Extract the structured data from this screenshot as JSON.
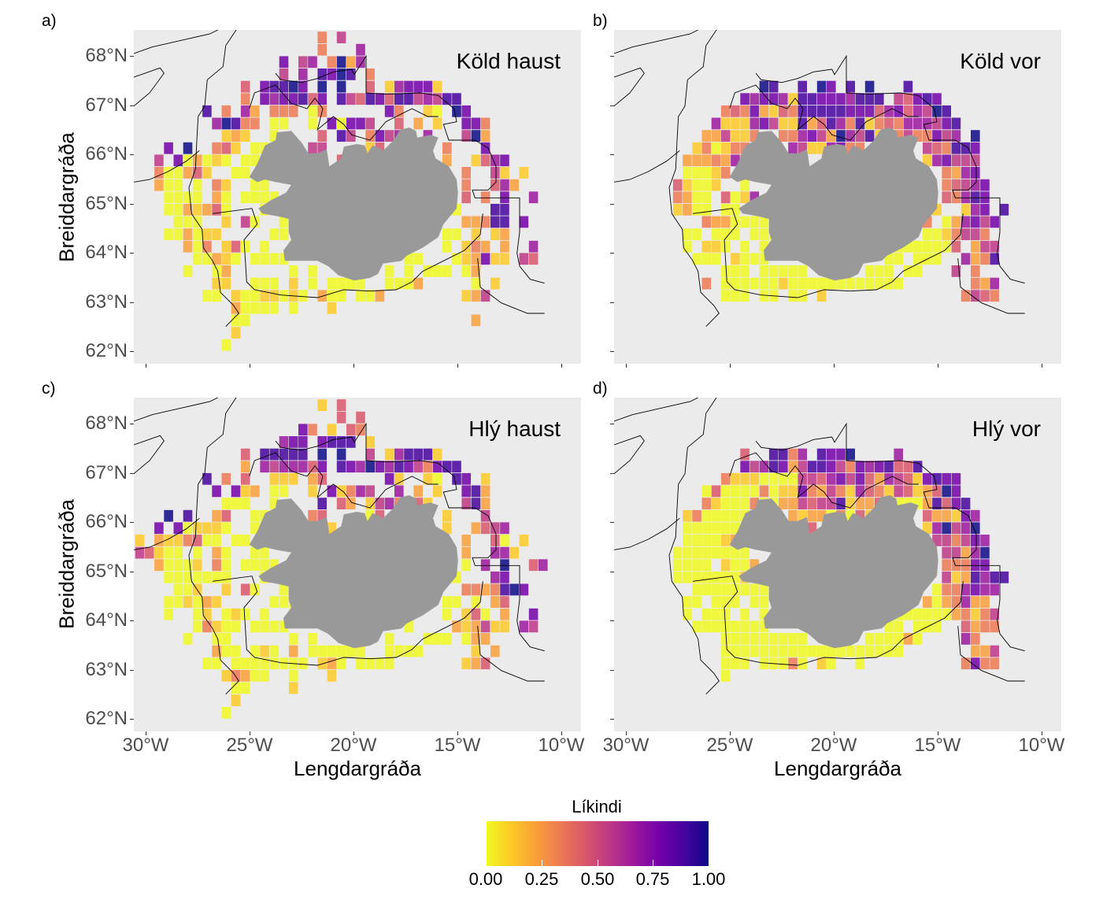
{
  "figure": {
    "panel_labels": [
      "a)",
      "b)",
      "c)",
      "d)"
    ],
    "x_axis_title": "Lengdargráða",
    "y_axis_title": "Breiddargráða",
    "x_ticks": [
      "30°W",
      "25°W",
      "20°W",
      "15°W",
      "10°W"
    ],
    "y_ticks": [
      "62°N",
      "63°N",
      "64°N",
      "65°N",
      "66°N",
      "67°N",
      "68°N"
    ],
    "legend": {
      "title": "Líkindi",
      "ticks": [
        "0.00",
        "0.25",
        "0.50",
        "0.75",
        "1.00"
      ],
      "colormap": [
        "#f0f921",
        "#fdca26",
        "#fb9f3a",
        "#ed7953",
        "#d8576b",
        "#bd3786",
        "#9c179e",
        "#7301a8",
        "#47039f",
        "#0d0887"
      ]
    },
    "land_color": "#999999",
    "panel_background": "#EBEBEB"
  },
  "chart_data": {
    "type": "heatmap",
    "value_encoding": "each cell is 'column:digit'; probability = digit/9",
    "lat_start": 68.375,
    "lat_step": -0.25,
    "lon_start": -29.36,
    "lon_step": 0.462,
    "x_range": [
      -30.6,
      -9.1
    ],
    "y_range": [
      61.8,
      68.55
    ],
    "panels": [
      {
        "title": "Köld haust",
        "rows": [
          "17:3 19:5",
          "17:3 21:6",
          "13:7 15:5 16:6 18:3 19:9 20:2 21:6",
          "13:5 15:6 17:8 18:7 19:9 20:8 22:3",
          "9:4 11:7 12:8 13:8 14:9 15:7 17:9 19:9 22:4 24:1 25:6 26:7 27:7 28:7 29:1",
          "9:3 11:7 12:6 13:7 14:7 15:8 16:4 17:7 19:8 20:5 21:4 22:8 23:7 24:4 25:8 26:8 27:5 28:6 29:5 30:8 31:8",
          "5:8 7:3 9:6 10:2 12:3 13:3 14:3 16:0 17:3 24:7 25:3 28:1 29:0 31:9 32:7",
          "6:6 7:9 8:8 9:3 10:3 12:0 13:0 16:0 18:7 19:0 20:7 21:7 22:5 25:4 27:2 29:1 32:7 33:7 34:3",
          "7:1 8:2 9:1 12:0 17:4 19:8 20:5 22:3 23:7 24:5 25:6 28:6 32:5 33:9 34:2",
          "1:7 3:9 6:3 7:4 8:1 10:0 11:0 16:5 17:5 22:1 23:4 30:3 34:7",
          "0:5 2:7 3:0 4:2 5:0 6:1 7:0 9:0 10:0 16:6 17:0 19:4 30:2 33:1 34:4 35:6 36:7",
          "0:3 1:0 2:0 3:2 4:4 5:1 8:0 9:0 16:1 32:3 35:5 36:1 38:1",
          "0:2 1:0 2:0 4:0 6:3 7:1 10:0 11:0 32:3 35:4 36:6 37:2",
          "1:0 2:0 3:0 4:0 6:2 7:0 9:0 10:0 11:0 12:0 32:4 34:3 36:7 39:6",
          "1:0 2:0 3:2 4:1 5:2 6:4 7:0 11:0 31:0 35:8 36:8",
          "2:0 3:0 4:0 7:1 9:5 10:0 13:0 32:2 33:2 34:3 35:8 36:8 38:7",
          "1:0 2:0 3:2 4:0 5:1 6:1 12:0 13:0 30:0 31:0 33:1 35:1 36:2",
          "3:2 4:0 5:3 7:1 8:4 9:0 11:0 14:0 30:0 32:1 33:3 34:2 36:2 39:6",
          "4:0 5:0 6:2 7:1 8:0 10:0 11:0 12:0 13:0 26:0 27:0 31:0 32:1 33:2 34:7 35:1 36:1 38:5 39:4",
          "3:0 6:0 7:2 14:0 16:0 24:0 26:0 28:0 29:0 30:0 32:0 33:2",
          "6:1 7:1 10:0 11:0 12:0 14:1 16:0 18:0 19:0 20:0 21:0 24:0 25:0 26:0 27:2 33:0 35:1",
          "5:0 6:0 8:1 9:0 10:0 11:1 12:1 13:0 14:1 15:0 17:2 18:0 19:0 21:0 22:0 23:2 32:1 33:2 34:5",
          "8:2 9:0 10:0 11:0 12:0 14:0 18:1",
          "8:0 9:0 33:2",
          "8:1",
          "7:0"
        ]
      },
      {
        "title": "Köld vor",
        "rows": [
          "",
          "",
          "",
          "",
          "13:9 14:8 17:8 19:9 20:7 22:8 24:9 28:8",
          "11:7 12:6 13:7 14:7 15:6 16:1 17:8 18:8 19:7 20:7 21:7 22:6 23:8 24:8 25:8 27:5 28:4 29:7 30:8 31:7",
          "9:3 10:4 11:3 12:7 13:2 14:1 15:4 16:3 17:8 18:8 19:8 20:8 21:8 22:7 23:7 24:7 25:4 26:6 27:7 28:4 29:6 30:5 31:9 32:8",
          "8:6 9:1 10:1 11:1 12:6 13:7 14:5 15:1 16:1 17:8 18:2 19:4 20:8 21:6 22:3 23:8 24:1 25:3 26:4 27:3 28:6 29:6 30:6 31:5 32:7 33:8",
          "7:2 8:2 9:5 10:1 11:1 12:3 15:3 16:3 17:6 18:7 19:5 20:2 21:9 22:6 23:5 24:8 25:1 27:3 28:5 29:3 30:3 31:7 32:5 33:6 35:9",
          "6:1 7:3 8:0 9:1 10:3 11:3 16:6 17:5 18:1 19:1 20:6 21:7 22:3 23:3 30:5 31:4 32:3 33:8 34:8 35:7",
          "5:2 6:2 7:2 8:3 9:2 10:6 11:3 16:4 17:3 30:1 31:6 32:7 33:5 34:5 35:5",
          "5:0 6:0 7:0 8:1 9:3 16:5 32:3 33:2 34:6 35:7",
          "4:4 5:1 6:0 7:0 8:1 11:0 32:3 33:4 34:5 35:6 36:7",
          "4:3 5:2 6:0 7:0 9:4 10:0 11:1 12:6 32:4 33:3 34:6 35:8 36:7",
          "4:1 5:2 6:0 7:0 9:0 10:0 31:1 34:1 35:6 36:7 38:8",
          "7:3 8:2 9:2 10:0 11:0 12:0 13:0 30:3 32:0 33:2 34:6 35:7 36:5 37:7",
          "5:0 6:0 8:0 9:0 10:0 12:0 13:0 14:0 30:0 31:0 32:1 33:3 34:5 35:5 36:3",
          "5:0 7:1 8:1 9:0 11:0 13:0 14:0 27:0 28:0 29:0 30:0 31:0 32:0 33:4 35:2 36:5 37:5",
          "6:0 7:0 8:0 10:1 11:0 12:0 13:0 26:0 27:0 29:0 30:0 31:0 34:6 35:2 36:3 37:8",
          "9:0 10:0 11:0 13:0 14:0 15:0 16:0 17:0 24:0 25:0 26:0 28:0 29:0 33:5 35:3",
          "7:3 9:0 10:0 11:0 12:0 13:0 14:0 15:1 16:0 17:0 18:0 19:0 20:0 21:0 22:0 23:0 24:0 25:0 26:0 27:0 35:3 36:2 37:6",
          "9:0 10:0 11:0 13:0 14:0 16:0 17:0 19:1 34:3 35:5 36:4 37:3"
        ]
      },
      {
        "title": "Hlý haust",
        "rows": [
          "17:1 19:4",
          "19:4 21:4",
          "15:7 16:3 18:1 20:4 21:3",
          "13:6 14:7 15:7 17:7 18:8 19:8 20:8 22:1",
          "9:4 11:8 12:8 13:8 14:8 15:8 17:9 19:9 22:5 24:1 25:6 26:8 27:8 28:8 29:1",
          "9:2 11:6 12:5 13:6 14:6 15:6 16:4 17:7 19:8 20:7 21:6 22:9 23:7 24:6 25:8 26:7 27:5 28:3 29:7 30:8 31:8",
          "5:8 7:3 9:4 12:1 13:1 14:1 16:2 17:4 24:7 25:1 28:1 29:0 31:8 32:7 34:1",
          "6:7 8:7 9:1 10:2 12:0 13:0 16:1 18:7 19:1 20:3 21:6 22:5 25:6 27:2 29:1 32:7 33:8 34:2",
          "7:0 8:0 9:0 12:0 17:8 19:4 20:2 22:1 23:5 24:6 25:3 27:4 28:1 32:5 33:8 34:2",
          "1:9 3:8 6:2 7:4 10:0 11:0 16:3 17:4 22:0 23:4 30:1 34:5",
          "0:7 2:7 3:0 4:1 5:1 6:1 7:0 10:0 11:0 17:1 18:1 30:1 33:2 34:4 35:5 36:6",
          "-2:1 0:2 1:1 2:1 3:3 4:4 5:0 6:0 8:0 9:0 16:2 32:2 35:4 36:0 38:1",
          "-2:5 -1:4 0:1 1:0 2:0 4:0 6:2 7:0 10:0 11:0 32:2 35:6 36:6 37:1",
          "0:2 1:0 2:0 3:0 4:1 6:3 7:0 9:0 10:0 11:0 12:0 32:0 34:6 36:9 39:4 40:6",
          "1:0 2:0 3:0 4:0 5:0 6:0 7:0 11:0 31:0 35:6 36:7",
          "2:0 3:0 4:1 7:1 9:4 10:0 13:0 32:3 33:3 34:2 35:3 36:8 37:9 38:7",
          "1:0 2:0 3:1 4:0 5:2 6:1 12:0 13:0 14:0 30:0 31:0 33:0 35:2 36:4",
          "1:0 4:0 5:1 7:0 8:1 9:0 11:0 14:0 30:0 32:1 33:4 34:0 36:2 39:7",
          "4:0 5:3 6:1 7:0 8:0 10:0 11:0 12:0 13:0 26:0 31:2 32:1 33:2 34:5 35:1 36:1 38:6 39:5",
          "3:0 6:0 7:0 14:0 16:0 24:0 28:0 29:0 30:0 32:0 33:2 34:2",
          "6:2 7:0 8:0 10:0 11:1 12:0 14:2 16:0 17:0 18:0 19:0 20:0 21:0 24:0 25:0 26:0 27:0 33:1 35:2",
          "5:0 6:0 8:0 9:0 10:0 11:0 12:0 13:0 14:0 15:0 17:1 18:2 19:0 21:0 22:0 23:0 24:0 32:1 33:2 34:4",
          "7:1 8:3 9:2 10:0 11:0 14:0 18:1",
          "8:0 9:0 14:1",
          "8:1",
          "7:0"
        ]
      },
      {
        "title": "Hlý vor",
        "rows": [
          "",
          "",
          "",
          "",
          "11:4 14:8 15:8 16:3 17:6 19:8 20:7 21:7 22:9 27:6",
          "11:7 12:5 13:6 14:8 15:7 16:2 17:5 18:8 19:8 20:7 21:5 22:3 23:7 24:6 25:7 26:8 27:4 28:4 29:8",
          "9:3 10:1 11:1 12:1 13:0 14:0 15:0 16:0 17:5 18:5 19:4 20:6 21:7 22:5 23:7 24:4 25:2 26:6 27:5 28:4 29:1 30:7 31:8 32:7 33:7",
          "7:0 8:4 9:0 10:0 11:0 12:0 13:3 14:0 15:1 16:1 17:7 18:3 19:2 20:5 21:3 22:1 23:6 24:4 25:3 26:1 27:5 28:4 29:1 30:2 31:4 32:9 33:7",
          "7:3 8:1 9:0 10:0 11:0 12:3 13:0 14:0 15:2 16:2 17:5 18:4 19:5 20:5 21:8 22:1 23:2 24:2 25:4 27:0 28:0 29:0 30:2 31:8 32:4 33:7 34:8",
          "5:1 6:3 7:0 8:0 9:0 10:0 11:0 12:0 13:2 16:2 17:1 18:2 19:2 20:0 21:3 22:0 23:4 24:1 30:4 31:2 32:2 33:1 34:7 35:6",
          "5:0 6:0 7:0 8:0 9:0 10:0 11:0 12:4 16:2 17:0 18:4 30:1 31:6 32:9 33:5 34:6 35:9",
          "5:0 6:0 7:0 8:0 9:1 10:2 16:4 31:5 32:5 33:3 34:5 35:7 36:6",
          "4:0 5:0 6:0 7:0 8:0 9:0 10:0 11:0 32:5 33:5 34:2 35:6 36:9",
          "4:0 5:0 6:0 7:0 9:1 10:0 11:0 12:2 32:3 33:3 34:3 35:7 36:7",
          "4:0 5:0 6:0 7:0 8:0 9:0 10:0 11:1 32:5 33:1 34:2 35:8 36:6 37:8 38:8",
          "6:0 7:0 8:0 9:0 10:0 11:0 12:0 13:0 31:0 32:3 33:3 34:6 35:7 36:6 37:6",
          "5:0 6:0 8:0 9:0 10:0 12:0 13:0 30:2 31:0 32:2 33:3 34:6 35:2 36:2",
          "5:0 7:0 8:0 9:0 11:0 13:0 27:0 28:0 29:0 30:0 31:0 32:0 33:2 34:3 35:1 36:3 37:5",
          "6:0 7:0 8:0 9:0 10:0 11:0 12:0 13:0 26:0 27:0 29:0 30:0 31:0 34:4 35:2 36:3 37:3",
          "9:0 10:0 11:0 12:0 13:0 14:0 15:0 16:0 17:0 24:0 25:0 26:0 27:0 28:2 29:0 34:6 35:3",
          "9:0 10:0 11:0 12:0 13:0 14:0 15:0 16:0 17:0 18:0 19:0 20:0 21:0 22:0 23:0 24:0 25:0 26:0 27:0 35:2 36:2 37:5",
          "9:0 10:0 11:0 13:0 14:0 15:0 16:3 17:0 19:1 20:0 23:0 34:3 35:7 36:3 37:3",
          "9:0"
        ]
      }
    ]
  }
}
